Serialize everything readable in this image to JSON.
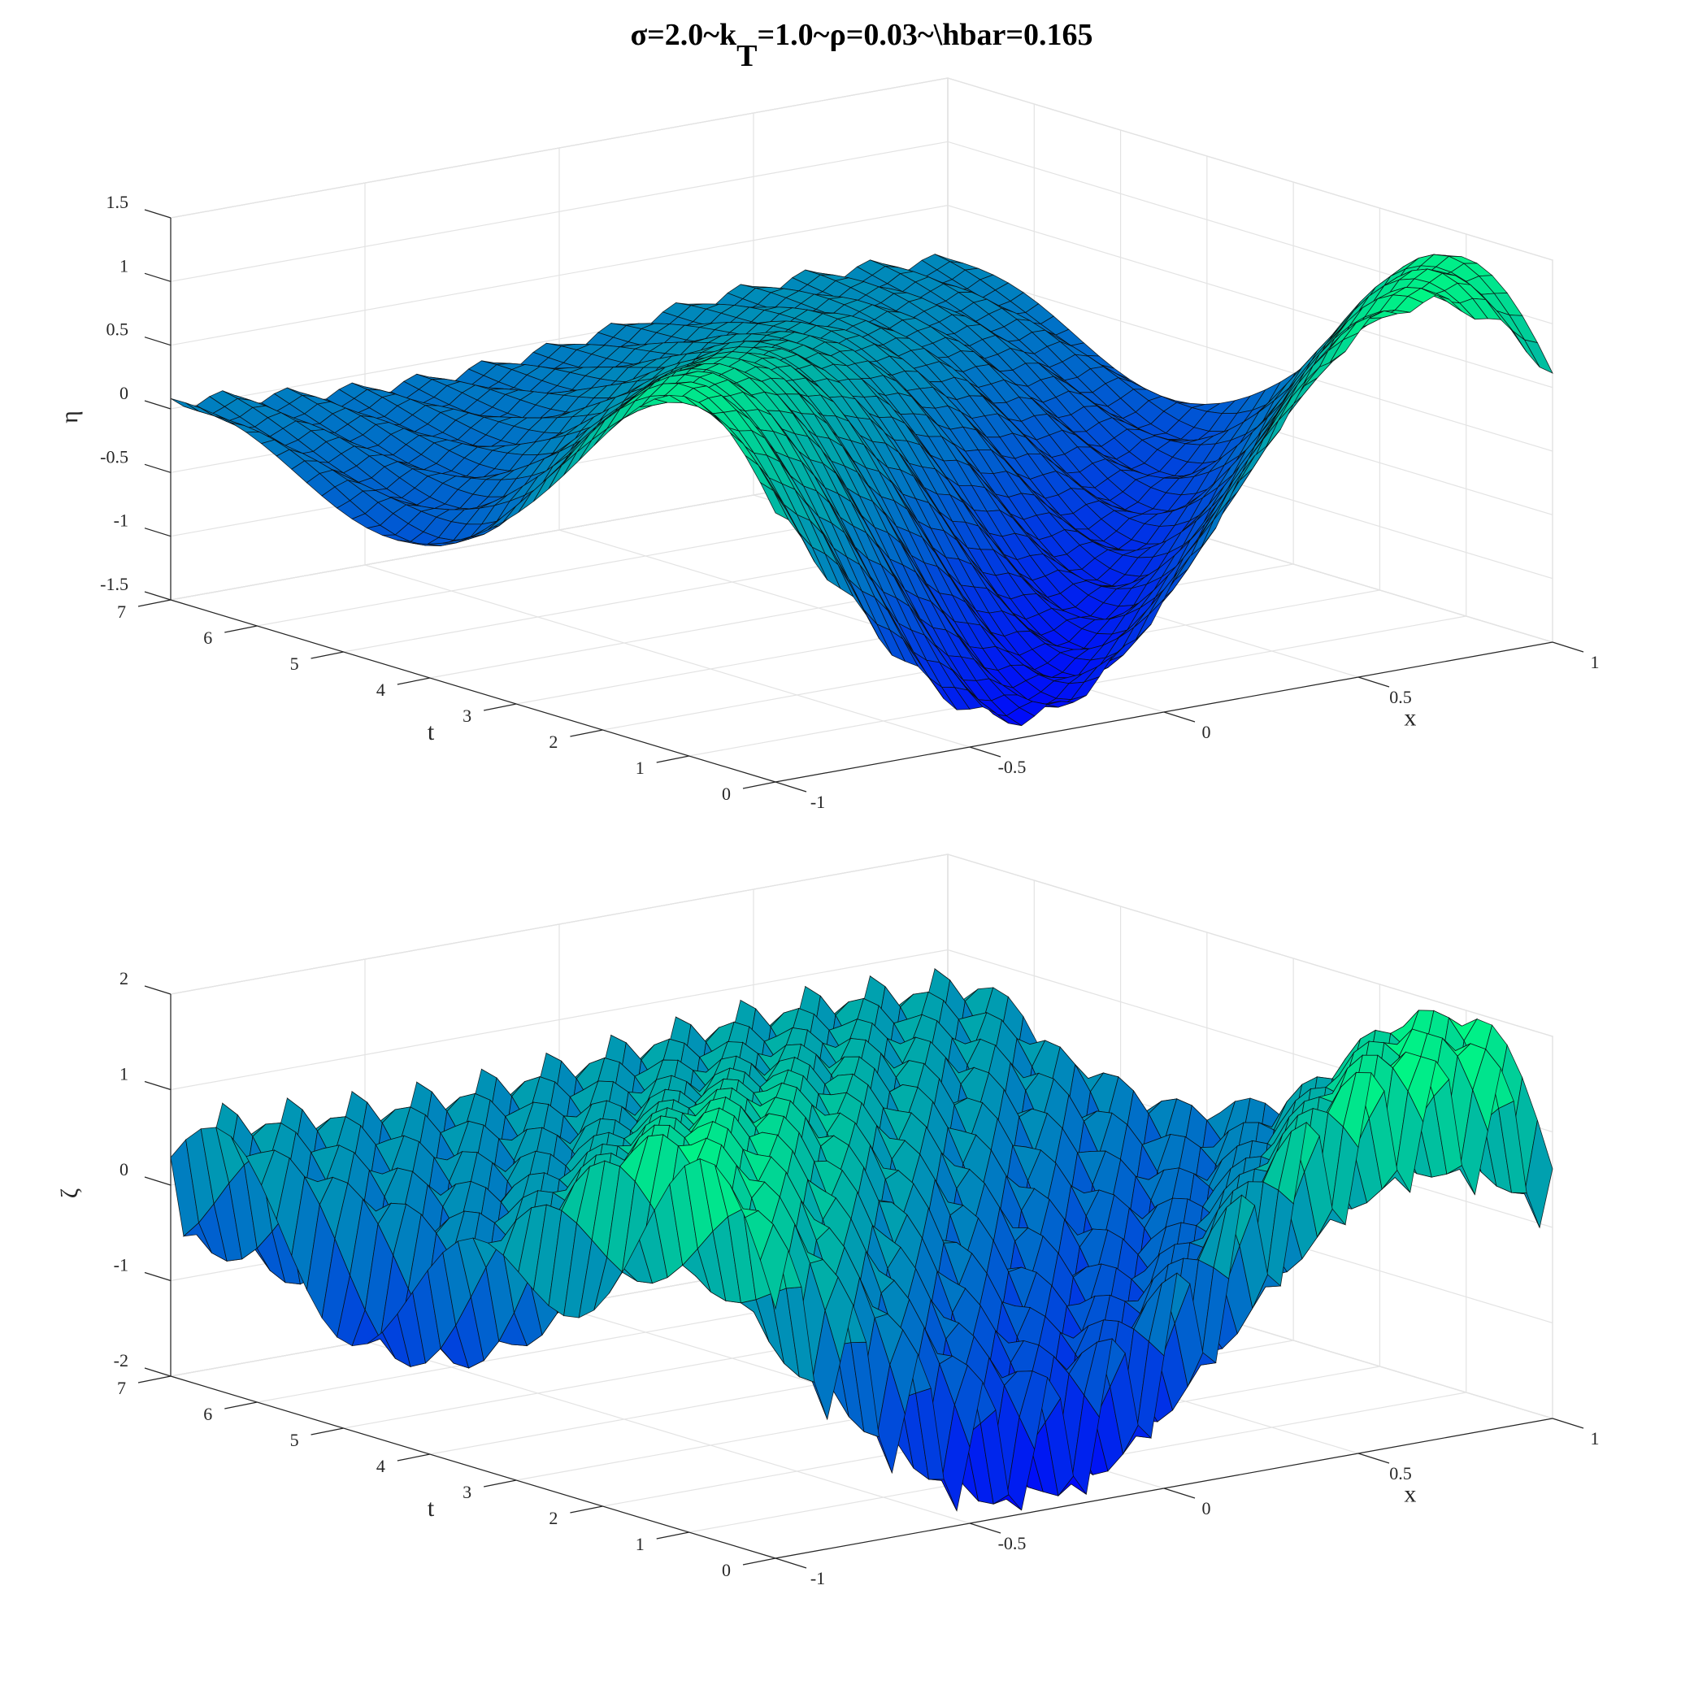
{
  "figure": {
    "title_main": "σ=2.0~k",
    "title_sub": "T",
    "title_rest": "=1.0~ρ=0.03~\\hbar=0.165"
  },
  "colors": {
    "low": "#0000ff",
    "high": "#00ff80",
    "edge": "#000000"
  },
  "chart_data": [
    {
      "type": "surface",
      "xlabel": "x",
      "ylabel": "t",
      "zlabel": "η",
      "xlim": [
        -1,
        1
      ],
      "ylim": [
        0,
        7
      ],
      "zlim": [
        -1.5,
        1.5
      ],
      "x_ticks": [
        "-1",
        "-0.5",
        "0",
        "0.5",
        "1"
      ],
      "y_ticks": [
        "0",
        "1",
        "2",
        "3",
        "4",
        "5",
        "6",
        "7"
      ],
      "z_ticks": [
        "-1.5",
        "-1",
        "-0.5",
        "0",
        "0.5",
        "1",
        "1.5"
      ],
      "colormap": "winter",
      "grid": true,
      "description_params": {
        "k": 1,
        "t_range": [
          0,
          7
        ],
        "z_amp": 1.35,
        "ripple": 0.06,
        "ripple_freq": 12
      }
    },
    {
      "type": "surface",
      "xlabel": "x",
      "ylabel": "t",
      "zlabel": "ζ",
      "xlim": [
        -1,
        1
      ],
      "ylim": [
        0,
        7
      ],
      "zlim": [
        -2,
        2
      ],
      "x_ticks": [
        "-1",
        "-0.5",
        "0",
        "0.5",
        "1"
      ],
      "y_ticks": [
        "0",
        "1",
        "2",
        "3",
        "4",
        "5",
        "6",
        "7"
      ],
      "z_ticks": [
        "-2",
        "-1",
        "0",
        "1",
        "2"
      ],
      "colormap": "winter",
      "grid": true,
      "description_params": {
        "k": 1,
        "t_range": [
          0,
          7
        ],
        "z_amp": 1.35,
        "ripple": 0.75,
        "ripple_freq": 12
      }
    }
  ]
}
